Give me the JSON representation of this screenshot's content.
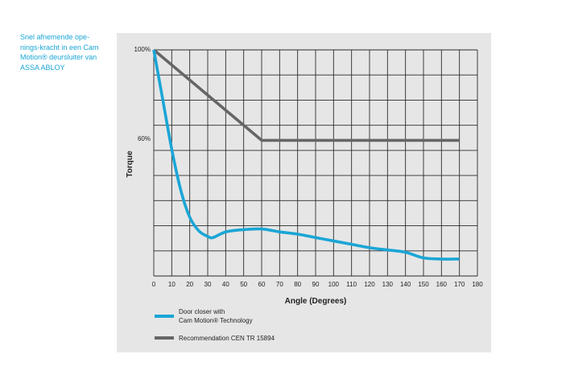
{
  "caption": {
    "lines": [
      "Snel afnemende ope-",
      "nings-kracht in een Cam",
      "Motion® deursluiter van",
      "ASSA ABLOY"
    ]
  },
  "colors": {
    "panel": "#e6e6e6",
    "grid": "#2b2b2b",
    "cam_series": "#1aa6d6",
    "recommendation_series": "#666666",
    "caption": "#1aa6d6"
  },
  "chart_data": {
    "type": "line",
    "title": "",
    "xlabel": "Angle (Degrees)",
    "ylabel": "Torque",
    "xlim": [
      0,
      180
    ],
    "ylim": [
      0,
      100
    ],
    "x_ticks": [
      0,
      10,
      20,
      30,
      40,
      50,
      60,
      70,
      80,
      90,
      100,
      110,
      120,
      130,
      140,
      150,
      160,
      170,
      180
    ],
    "y_tick_labels": [
      {
        "value": 100,
        "label": "100%"
      },
      {
        "value": 60,
        "label": "60%"
      }
    ],
    "grid": true,
    "legend_position": "bottom-left",
    "series": [
      {
        "name": "Door closer with Cam Motion® Technology",
        "legend_lines": [
          "Door closer with",
          "Cam Motion® Technology"
        ],
        "color": "#1aa6d6",
        "x": [
          0,
          5,
          10,
          15,
          20,
          25,
          30,
          33,
          40,
          50,
          60,
          70,
          80,
          90,
          100,
          110,
          120,
          130,
          140,
          150,
          160,
          170
        ],
        "y": [
          100,
          78,
          56,
          38,
          26,
          20,
          17.5,
          17,
          19.5,
          20.5,
          20.8,
          19.5,
          18.5,
          17,
          15.5,
          14,
          12.5,
          11.5,
          10.5,
          8,
          7.5,
          7.5
        ]
      },
      {
        "name": "Recommendation CEN TR 15894",
        "legend_lines": [
          "Recommendation CEN TR 15894"
        ],
        "color": "#666666",
        "x": [
          0,
          60,
          170
        ],
        "y": [
          100,
          60,
          60
        ]
      }
    ]
  }
}
